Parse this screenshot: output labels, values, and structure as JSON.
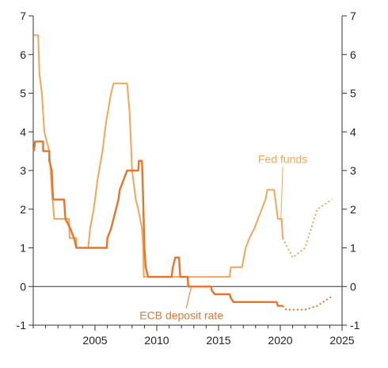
{
  "chart_data": {
    "type": "line",
    "title": "",
    "xlabel": "",
    "ylabel": "",
    "xlim": [
      2000.0,
      2025.0
    ],
    "ylim": [
      -1,
      7
    ],
    "x_ticks": [
      2005,
      2010,
      2015,
      2020,
      2025
    ],
    "y_ticks": [
      -1,
      0,
      1,
      2,
      3,
      4,
      5,
      6,
      7
    ],
    "y_axis_sides": [
      "left",
      "right"
    ],
    "zero_line": true,
    "grid": false,
    "legend": "none",
    "colors": {
      "fed_funds": "#f5a55a",
      "ecb_deposit": "#e8742a",
      "axis": "#333333",
      "text": "#222222"
    },
    "series": [
      {
        "name": "Fed funds",
        "color": "#f5a55a",
        "style": "solid",
        "points": [
          [
            2000.05,
            6.5
          ],
          [
            2000.4,
            6.5
          ],
          [
            2000.5,
            5.5
          ],
          [
            2000.7,
            5.0
          ],
          [
            2000.9,
            4.0
          ],
          [
            2001.3,
            3.5
          ],
          [
            2001.5,
            2.5
          ],
          [
            2001.7,
            1.75
          ],
          [
            2002.9,
            1.75
          ],
          [
            2002.95,
            1.25
          ],
          [
            2003.5,
            1.25
          ],
          [
            2003.5,
            1.0
          ],
          [
            2004.45,
            1.0
          ],
          [
            2004.6,
            1.5
          ],
          [
            2004.9,
            2.0
          ],
          [
            2005.2,
            2.75
          ],
          [
            2005.6,
            3.5
          ],
          [
            2005.9,
            4.25
          ],
          [
            2006.3,
            5.0
          ],
          [
            2006.5,
            5.25
          ],
          [
            2007.6,
            5.25
          ],
          [
            2007.8,
            4.5
          ],
          [
            2008.0,
            3.0
          ],
          [
            2008.3,
            2.25
          ],
          [
            2008.5,
            2.0
          ],
          [
            2008.8,
            1.5
          ],
          [
            2008.9,
            1.0
          ],
          [
            2008.95,
            0.25
          ],
          [
            2015.9,
            0.25
          ],
          [
            2016.0,
            0.5
          ],
          [
            2016.9,
            0.5
          ],
          [
            2017.2,
            1.0
          ],
          [
            2017.5,
            1.25
          ],
          [
            2017.9,
            1.5
          ],
          [
            2018.2,
            1.75
          ],
          [
            2018.5,
            2.0
          ],
          [
            2018.8,
            2.25
          ],
          [
            2018.95,
            2.5
          ],
          [
            2019.5,
            2.5
          ],
          [
            2019.6,
            2.25
          ],
          [
            2019.8,
            1.75
          ],
          [
            2020.1,
            1.75
          ],
          [
            2020.2,
            1.25
          ]
        ]
      },
      {
        "name": "Fed funds projection",
        "color": "#f5a55a",
        "style": "dotted",
        "points": [
          [
            2020.2,
            1.25
          ],
          [
            2021.0,
            0.75
          ],
          [
            2022.0,
            1.0
          ],
          [
            2023.0,
            2.0
          ],
          [
            2024.2,
            2.25
          ]
        ]
      },
      {
        "name": "ECB deposit rate",
        "color": "#e8742a",
        "style": "solid",
        "points": [
          [
            2000.05,
            3.5
          ],
          [
            2000.15,
            3.75
          ],
          [
            2000.8,
            3.75
          ],
          [
            2000.8,
            3.5
          ],
          [
            2001.3,
            3.5
          ],
          [
            2001.3,
            3.25
          ],
          [
            2001.5,
            3.0
          ],
          [
            2001.6,
            2.25
          ],
          [
            2002.5,
            2.25
          ],
          [
            2002.6,
            1.75
          ],
          [
            2003.0,
            1.5
          ],
          [
            2003.3,
            1.25
          ],
          [
            2003.5,
            1.0
          ],
          [
            2005.95,
            1.0
          ],
          [
            2006.0,
            1.25
          ],
          [
            2006.3,
            1.5
          ],
          [
            2006.5,
            1.75
          ],
          [
            2006.7,
            2.0
          ],
          [
            2006.9,
            2.25
          ],
          [
            2007.0,
            2.5
          ],
          [
            2007.3,
            2.75
          ],
          [
            2007.6,
            3.0
          ],
          [
            2008.5,
            3.0
          ],
          [
            2008.55,
            3.25
          ],
          [
            2008.8,
            3.25
          ],
          [
            2008.85,
            2.75
          ],
          [
            2009.0,
            1.0
          ],
          [
            2009.1,
            0.5
          ],
          [
            2009.3,
            0.25
          ],
          [
            2011.2,
            0.25
          ],
          [
            2011.3,
            0.5
          ],
          [
            2011.5,
            0.75
          ],
          [
            2011.8,
            0.75
          ],
          [
            2011.9,
            0.25
          ],
          [
            2012.5,
            0.25
          ],
          [
            2012.55,
            0.0
          ],
          [
            2014.4,
            0.0
          ],
          [
            2014.45,
            -0.1
          ],
          [
            2014.7,
            -0.2
          ],
          [
            2015.9,
            -0.2
          ],
          [
            2016.0,
            -0.3
          ],
          [
            2016.2,
            -0.4
          ],
          [
            2019.7,
            -0.4
          ],
          [
            2019.8,
            -0.5
          ],
          [
            2020.2,
            -0.5
          ]
        ]
      },
      {
        "name": "ECB deposit rate projection",
        "color": "#e8742a",
        "style": "dotted",
        "points": [
          [
            2020.2,
            -0.5
          ],
          [
            2020.5,
            -0.6
          ],
          [
            2022.0,
            -0.6
          ],
          [
            2023.0,
            -0.5
          ],
          [
            2024.2,
            -0.25
          ]
        ]
      }
    ],
    "annotations": [
      {
        "text": "Fed funds",
        "series": "Fed funds",
        "color": "#f5a55a",
        "label_at": [
          2020.2,
          3.2
        ],
        "pointer_to": [
          2020.05,
          1.75
        ]
      },
      {
        "text": "ECB deposit rate",
        "series": "ECB deposit rate",
        "color": "#e8742a",
        "label_at": [
          2012.0,
          -0.85
        ],
        "pointer_to": [
          2012.8,
          0.0
        ]
      }
    ]
  }
}
